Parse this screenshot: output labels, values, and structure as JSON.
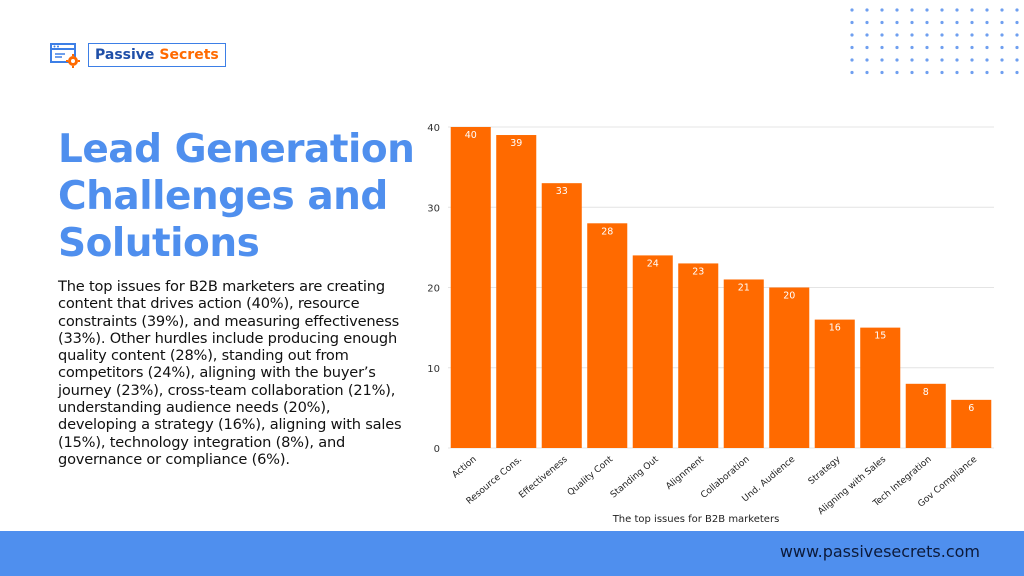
{
  "brand": {
    "word1": "Passive",
    "word2": "Secrets",
    "logo_icon": "browser-gear-icon",
    "colors": {
      "primary": "#4f8fee",
      "accent": "#ff6a00",
      "dark": "#1f4fa8"
    }
  },
  "title": "Lead Generation Challenges and Solutions",
  "description": "The top issues for B2B marketers are creating content that drives action (40%), resource constraints (39%), and measuring effectiveness (33%). Other hurdles include producing enough quality content (28%), standing out from competitors (24%), aligning with the buyer’s journey (23%), cross-team collaboration (21%), understanding audience needs (20%), developing a strategy (16%), aligning with sales (15%), technology integration (8%), and governance or compliance (6%).",
  "footer": {
    "url": "www.passivesecrets.com"
  },
  "chart_data": {
    "type": "bar",
    "categories": [
      "Action",
      "Resource Cons.",
      "Effectiveness",
      "Quality Cont",
      "Standing Out",
      "Alignment",
      "Collaboration",
      "Und. Audience",
      "Strategy",
      "Aligning with Sales",
      "Tech Integration",
      "Gov Compliance"
    ],
    "values": [
      40,
      39,
      33,
      28,
      24,
      23,
      21,
      20,
      16,
      15,
      8,
      6
    ],
    "title": "",
    "xlabel": "The top issues for B2B marketers",
    "ylabel": "",
    "ylim": [
      0,
      40
    ],
    "yticks": [
      "0",
      "10",
      "20",
      "30",
      "40"
    ],
    "grid": true,
    "bar_color": "#ff6a00",
    "data_labels": true
  }
}
